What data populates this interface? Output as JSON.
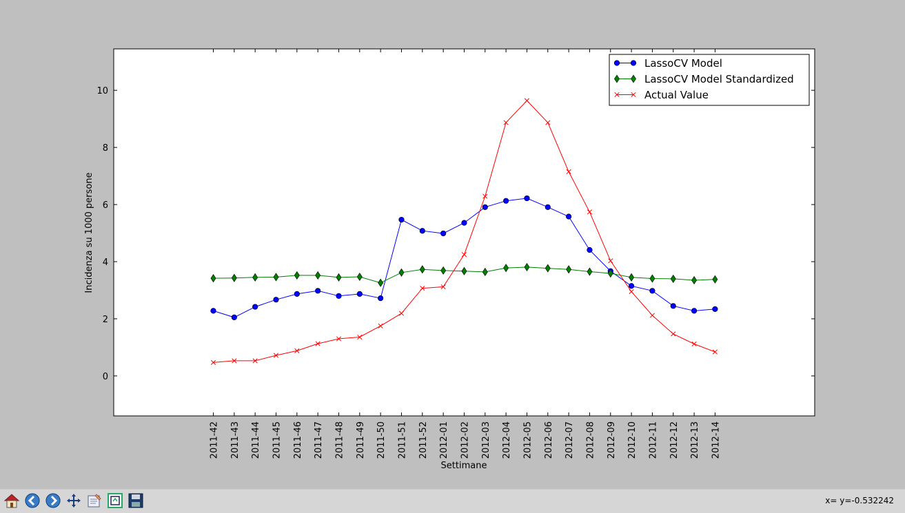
{
  "chart_data": {
    "type": "line",
    "title": "",
    "xlabel": "Settimane",
    "ylabel": "Incidenza su 1000 persone",
    "categories": [
      "2011-42",
      "2011-43",
      "2011-44",
      "2011-45",
      "2011-46",
      "2011-47",
      "2011-48",
      "2011-49",
      "2011-50",
      "2011-51",
      "2011-52",
      "2012-01",
      "2012-02",
      "2012-03",
      "2012-04",
      "2012-05",
      "2012-06",
      "2012-07",
      "2012-08",
      "2012-09",
      "2012-10",
      "2012-11",
      "2012-12",
      "2012-13",
      "2012-14"
    ],
    "ylim": [
      -1.4,
      11.45
    ],
    "yticks": [
      0,
      2,
      4,
      6,
      8,
      10
    ],
    "grid": false,
    "legend_position": "top-right",
    "series": [
      {
        "name": "LassoCV Model",
        "color": "#0000ff",
        "marker": "circle",
        "values": [
          2.28,
          2.05,
          2.42,
          2.67,
          2.87,
          2.98,
          2.8,
          2.87,
          2.72,
          5.47,
          5.08,
          4.99,
          5.36,
          5.91,
          6.13,
          6.22,
          5.91,
          5.58,
          4.41,
          3.67,
          3.15,
          2.98,
          2.45,
          2.28,
          2.34
        ]
      },
      {
        "name": "LassoCV Model Standardized",
        "color": "#007f00",
        "marker": "diamond",
        "values": [
          3.42,
          3.43,
          3.45,
          3.46,
          3.52,
          3.52,
          3.45,
          3.47,
          3.26,
          3.62,
          3.73,
          3.69,
          3.67,
          3.64,
          3.78,
          3.81,
          3.77,
          3.73,
          3.65,
          3.59,
          3.45,
          3.41,
          3.4,
          3.35,
          3.38
        ]
      },
      {
        "name": "Actual Value",
        "color": "#ff0000",
        "marker": "x",
        "values": [
          0.47,
          0.53,
          0.53,
          0.72,
          0.88,
          1.13,
          1.3,
          1.36,
          1.75,
          2.19,
          3.07,
          3.12,
          4.25,
          6.29,
          8.87,
          9.64,
          8.87,
          7.15,
          5.74,
          4.03,
          2.95,
          2.12,
          1.47,
          1.12,
          0.84
        ]
      }
    ]
  },
  "toolbar": {
    "coords_text": "x= y=-0.532242",
    "buttons": [
      "home-icon",
      "back-icon",
      "forward-icon",
      "pan-icon",
      "subplots-icon",
      "zoom-icon",
      "save-icon"
    ]
  }
}
